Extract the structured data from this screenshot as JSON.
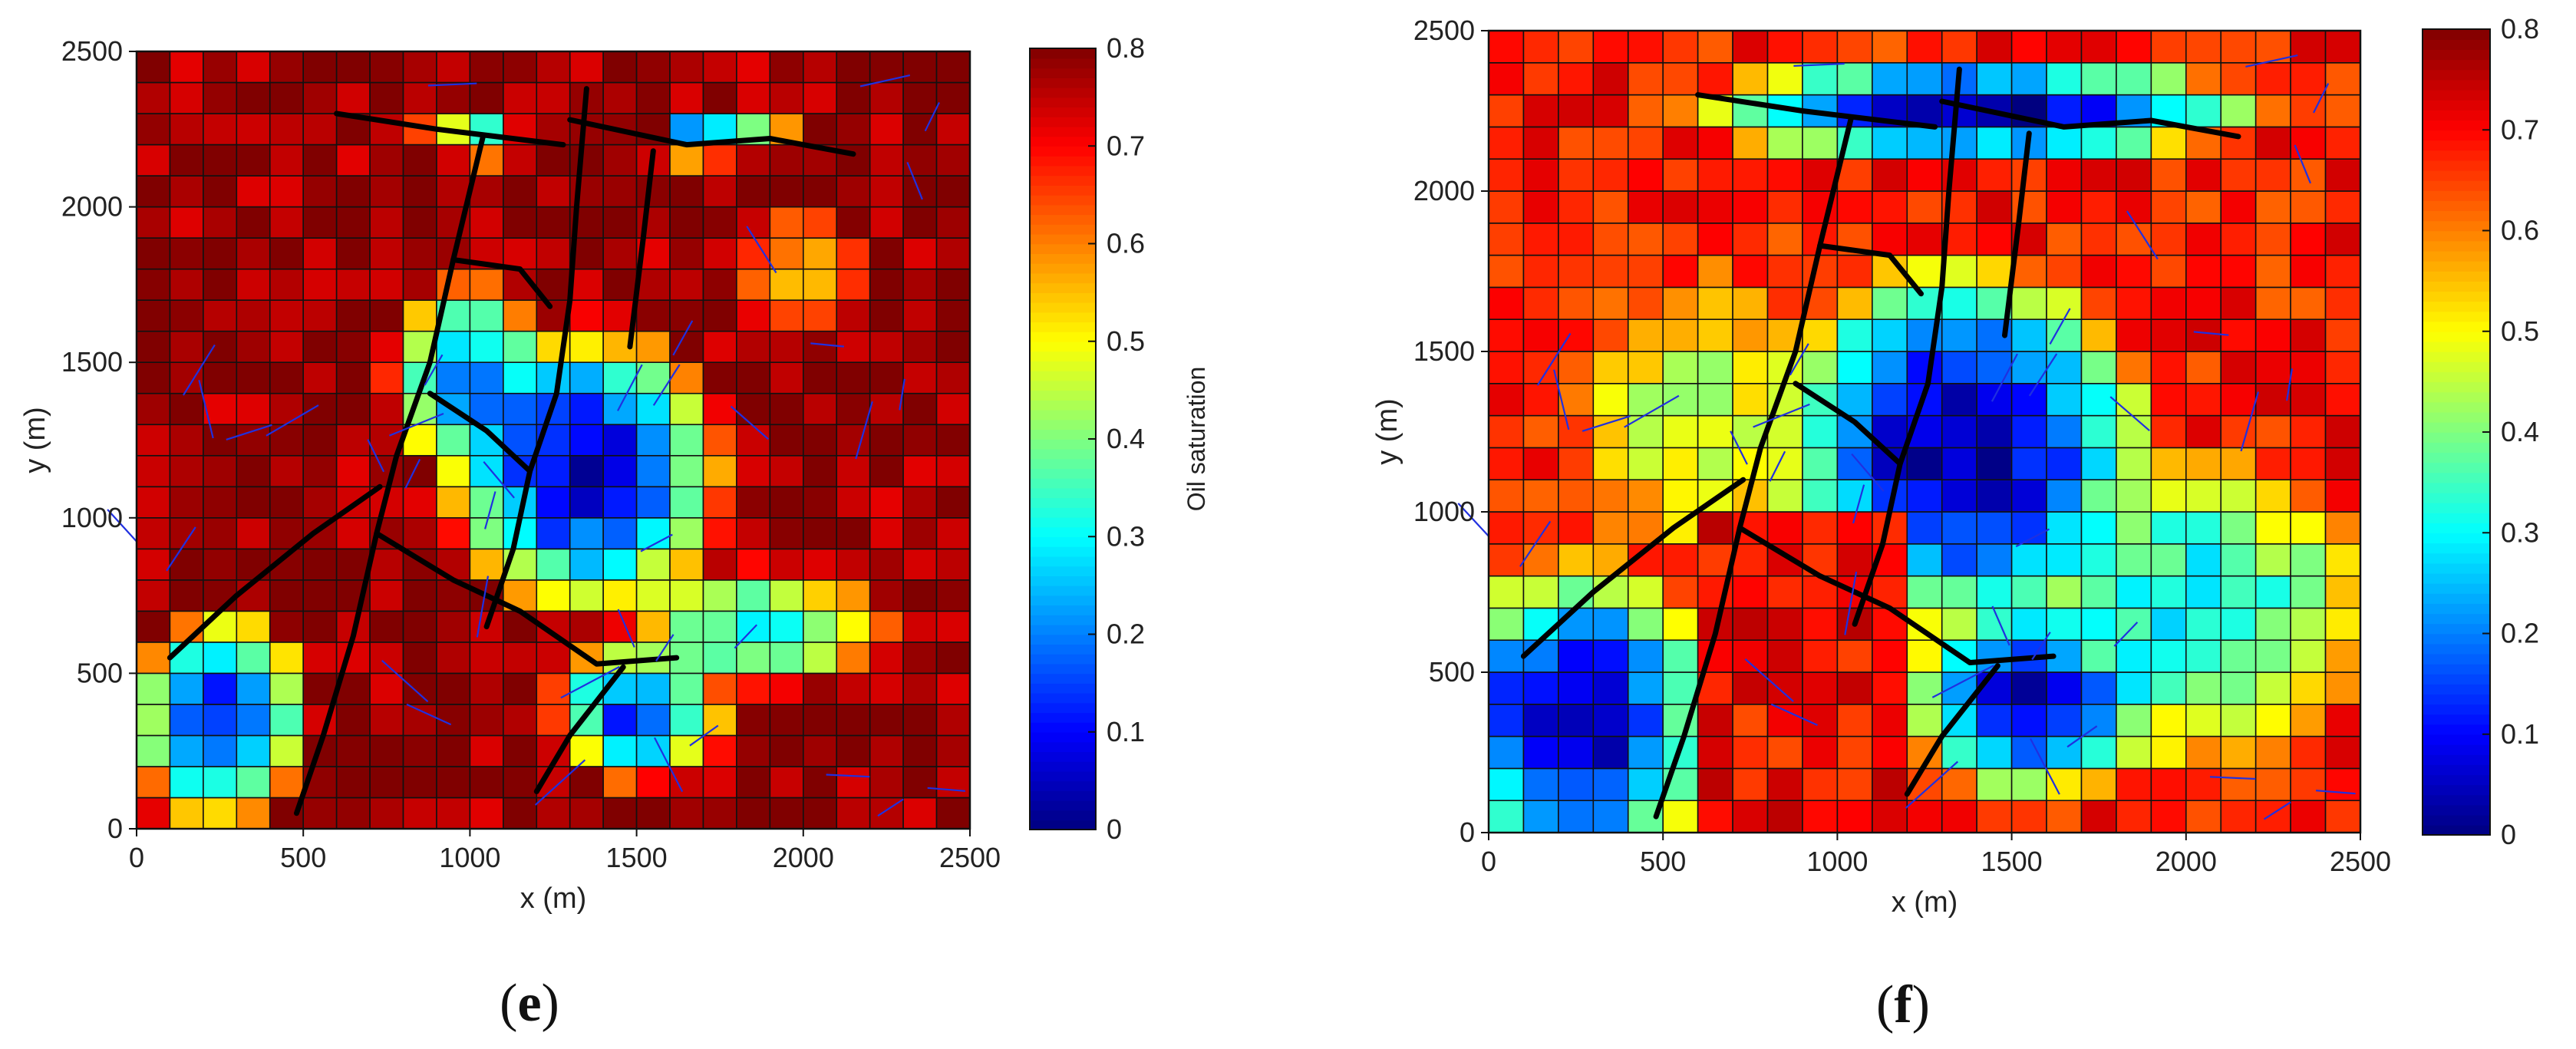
{
  "chart_data": [
    {
      "type": "heatmap",
      "panel_label": "e",
      "caption": {
        "open": "(",
        "letter": "e",
        "close": ")"
      },
      "xlabel": "x (m)",
      "ylabel": "y (m)",
      "xlim": [
        0,
        2500
      ],
      "ylim": [
        0,
        2500
      ],
      "x_ticks": [
        0,
        500,
        1000,
        1500,
        2000,
        2500
      ],
      "y_ticks": [
        0,
        500,
        1000,
        1500,
        2000,
        2500
      ],
      "grid_size": 25,
      "colorbar": {
        "label": "Oil saturation",
        "min": 0,
        "max": 0.8,
        "ticks": [
          0,
          0.1,
          0.2,
          0.3,
          0.4,
          0.5,
          0.6,
          0.7,
          0.8
        ]
      },
      "colormap": "jet",
      "background_saturation": 0.78,
      "depleted_zones": [
        {
          "cx": 1350,
          "cy": 1150,
          "rx": 470,
          "ry": 520,
          "min": 0.05
        },
        {
          "cx": 1400,
          "cy": 2230,
          "rx": 650,
          "ry": 110,
          "min": 0.05
        },
        {
          "cx": 250,
          "cy": 350,
          "rx": 300,
          "ry": 400,
          "min": 0.12
        },
        {
          "cx": 1500,
          "cy": 380,
          "rx": 300,
          "ry": 260,
          "min": 0.15
        },
        {
          "cx": 1000,
          "cy": 1450,
          "rx": 280,
          "ry": 350,
          "min": 0.2
        },
        {
          "cx": 2000,
          "cy": 1800,
          "rx": 250,
          "ry": 220,
          "min": 0.55
        },
        {
          "cx": 1850,
          "cy": 650,
          "rx": 450,
          "ry": 220,
          "min": 0.3
        }
      ],
      "saturated_zones": [
        {
          "x0": 720,
          "x1": 1220,
          "y0": 0,
          "y1": 720,
          "value": 0.78
        },
        {
          "x0": 1060,
          "x1": 1560,
          "y0": 1780,
          "y1": 2500,
          "value": 0.78
        }
      ],
      "fractures": [
        [
          [
            480,
            50
          ],
          [
            560,
            300
          ],
          [
            650,
            620
          ],
          [
            720,
            950
          ],
          [
            780,
            1200
          ],
          [
            880,
            1500
          ],
          [
            950,
            1830
          ],
          [
            1040,
            2230
          ]
        ],
        [
          [
            100,
            550
          ],
          [
            300,
            750
          ],
          [
            530,
            950
          ],
          [
            730,
            1100
          ]
        ],
        [
          [
            720,
            950
          ],
          [
            950,
            800
          ],
          [
            1150,
            700
          ],
          [
            1380,
            530
          ],
          [
            1620,
            550
          ]
        ],
        [
          [
            1200,
            120
          ],
          [
            1300,
            300
          ],
          [
            1460,
            520
          ]
        ],
        [
          [
            1050,
            650
          ],
          [
            1130,
            900
          ],
          [
            1180,
            1150
          ],
          [
            1260,
            1400
          ],
          [
            1300,
            1700
          ],
          [
            1320,
            2000
          ],
          [
            1350,
            2380
          ]
        ],
        [
          [
            600,
            2300
          ],
          [
            900,
            2250
          ],
          [
            1280,
            2200
          ]
        ],
        [
          [
            1300,
            2280
          ],
          [
            1650,
            2200
          ],
          [
            1900,
            2220
          ],
          [
            2150,
            2170
          ]
        ],
        [
          [
            950,
            1830
          ],
          [
            1150,
            1800
          ],
          [
            1240,
            1680
          ]
        ],
        [
          [
            880,
            1400
          ],
          [
            1050,
            1280
          ],
          [
            1180,
            1150
          ]
        ],
        [
          [
            1480,
            1550
          ],
          [
            1520,
            1900
          ],
          [
            1550,
            2180
          ]
        ]
      ]
    },
    {
      "type": "heatmap",
      "panel_label": "f",
      "caption": {
        "open": "(",
        "letter": "f",
        "close": ")"
      },
      "xlabel": "x (m)",
      "ylabel": "y (m)",
      "xlim": [
        0,
        2500
      ],
      "ylim": [
        0,
        2500
      ],
      "x_ticks": [
        0,
        500,
        1000,
        1500,
        2000,
        2500
      ],
      "y_ticks": [
        0,
        500,
        1000,
        1500,
        2000,
        2500
      ],
      "grid_size": 25,
      "colorbar": {
        "label": "Oil saturation",
        "min": 0,
        "max": 0.8,
        "ticks": [
          0,
          0.1,
          0.2,
          0.3,
          0.4,
          0.5,
          0.6,
          0.7,
          0.8
        ]
      },
      "colormap": "jet",
      "background_saturation": 0.68,
      "depleted_zones": [
        {
          "cx": 1350,
          "cy": 1200,
          "rx": 600,
          "ry": 650,
          "min": 0.02
        },
        {
          "cx": 1400,
          "cy": 2250,
          "rx": 900,
          "ry": 180,
          "min": 0.03
        },
        {
          "cx": 250,
          "cy": 350,
          "rx": 450,
          "ry": 550,
          "min": 0.03
        },
        {
          "cx": 1550,
          "cy": 400,
          "rx": 400,
          "ry": 320,
          "min": 0.05
        },
        {
          "cx": 2000,
          "cy": 700,
          "rx": 600,
          "ry": 550,
          "min": 0.3
        },
        {
          "cx": 600,
          "cy": 1300,
          "rx": 400,
          "ry": 500,
          "min": 0.45
        }
      ],
      "saturated_zones": [
        {
          "x0": 640,
          "x1": 1220,
          "y0": 0,
          "y1": 950,
          "value": 0.7
        }
      ],
      "fractures": [
        [
          [
            480,
            50
          ],
          [
            560,
            300
          ],
          [
            650,
            620
          ],
          [
            720,
            950
          ],
          [
            780,
            1200
          ],
          [
            880,
            1500
          ],
          [
            950,
            1830
          ],
          [
            1040,
            2230
          ]
        ],
        [
          [
            100,
            550
          ],
          [
            300,
            750
          ],
          [
            530,
            950
          ],
          [
            730,
            1100
          ]
        ],
        [
          [
            720,
            950
          ],
          [
            950,
            800
          ],
          [
            1150,
            700
          ],
          [
            1380,
            530
          ],
          [
            1620,
            550
          ]
        ],
        [
          [
            1200,
            120
          ],
          [
            1300,
            300
          ],
          [
            1460,
            520
          ]
        ],
        [
          [
            1050,
            650
          ],
          [
            1130,
            900
          ],
          [
            1180,
            1150
          ],
          [
            1260,
            1400
          ],
          [
            1300,
            1700
          ],
          [
            1320,
            2000
          ],
          [
            1350,
            2380
          ]
        ],
        [
          [
            600,
            2300
          ],
          [
            900,
            2250
          ],
          [
            1280,
            2200
          ]
        ],
        [
          [
            1300,
            2280
          ],
          [
            1650,
            2200
          ],
          [
            1900,
            2220
          ],
          [
            2150,
            2170
          ]
        ],
        [
          [
            950,
            1830
          ],
          [
            1150,
            1800
          ],
          [
            1240,
            1680
          ]
        ],
        [
          [
            880,
            1400
          ],
          [
            1050,
            1280
          ],
          [
            1180,
            1150
          ]
        ],
        [
          [
            1480,
            1550
          ],
          [
            1520,
            1900
          ],
          [
            1550,
            2180
          ]
        ]
      ]
    }
  ]
}
